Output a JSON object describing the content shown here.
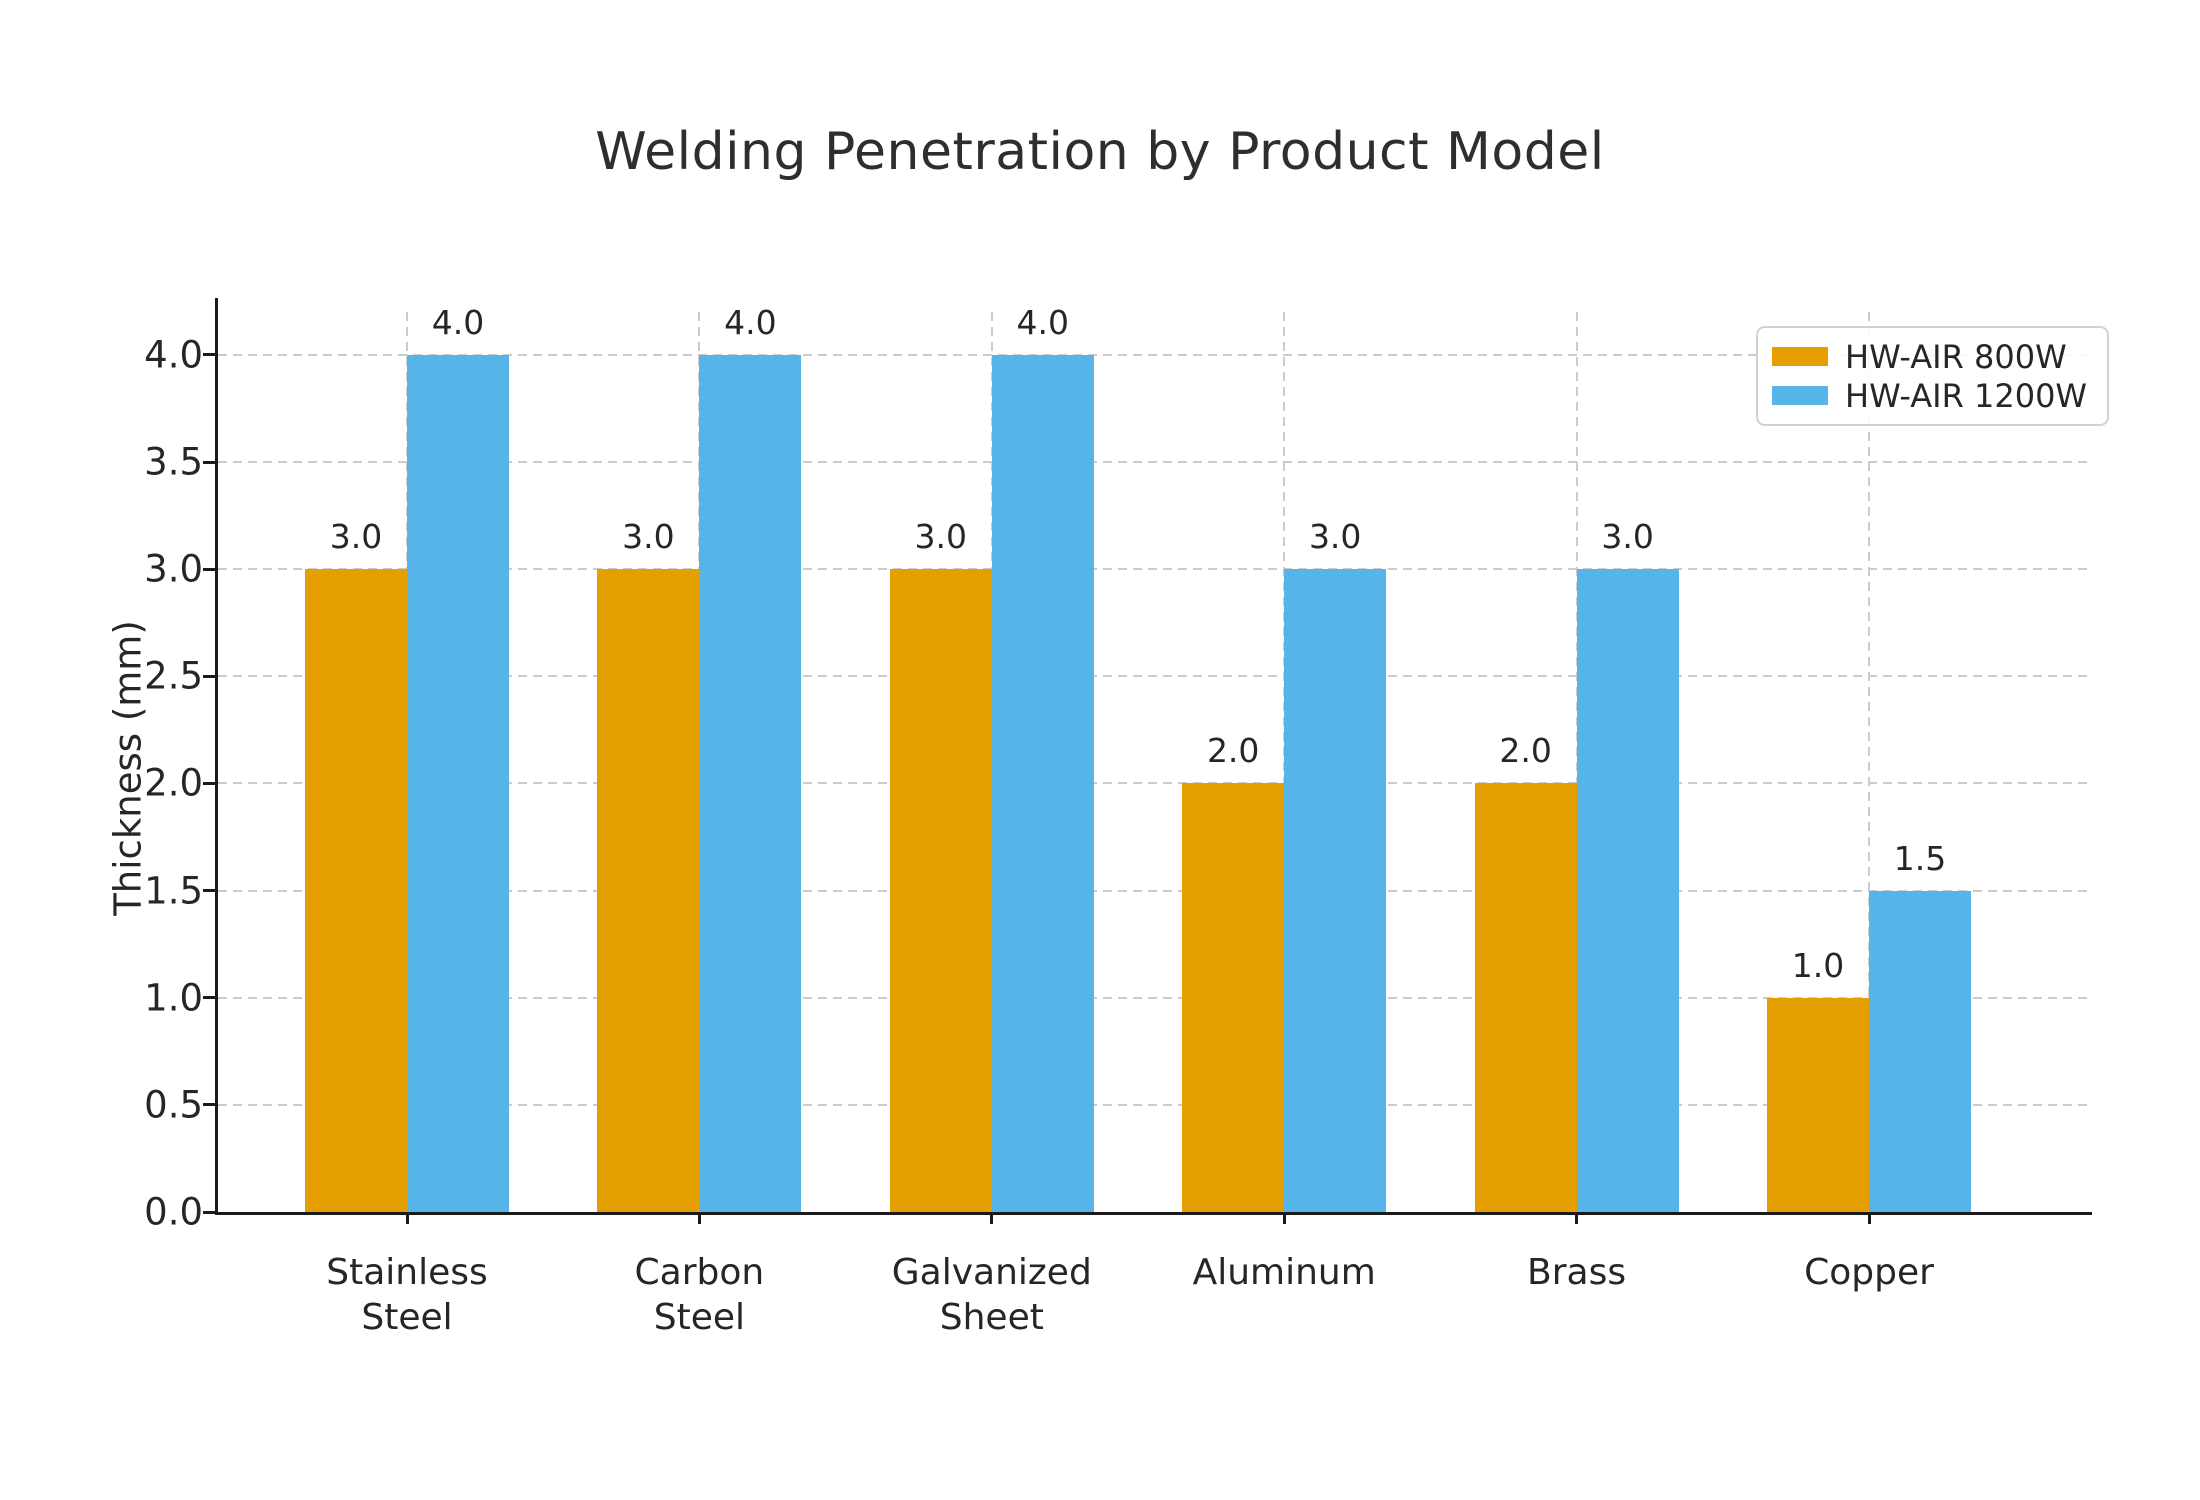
{
  "title": "Welding Penetration by Product Model",
  "chart_data": {
    "type": "bar",
    "title": "Welding Penetration by Product Model",
    "xlabel": "",
    "ylabel": "Thickness (mm)",
    "categories": [
      "Stainless\nSteel",
      "Carbon\nSteel",
      "Galvanized\nSheet",
      "Aluminum",
      "Brass",
      "Copper"
    ],
    "series": [
      {
        "name": "HW-AIR 800W",
        "color": "#E69F00",
        "values": [
          3.0,
          3.0,
          3.0,
          2.0,
          2.0,
          1.0
        ]
      },
      {
        "name": "HW-AIR 1200W",
        "color": "#56B4E9",
        "values": [
          4.0,
          4.0,
          4.0,
          3.0,
          3.0,
          1.5
        ]
      }
    ],
    "ylim": [
      0,
      4.2
    ],
    "yticks": [
      0.0,
      0.5,
      1.0,
      1.5,
      2.0,
      2.5,
      3.0,
      3.5,
      4.0
    ],
    "grid": "dashed horizontal and vertical",
    "legend_position": "upper right",
    "value_labels": "one decimal above each bar"
  },
  "colors": {
    "background": "#ffffff",
    "grid": "#cccccc",
    "text": "#262626",
    "spine": "#1a1a1a",
    "series_800w": "#E69F00",
    "series_1200w": "#56B4E9"
  }
}
